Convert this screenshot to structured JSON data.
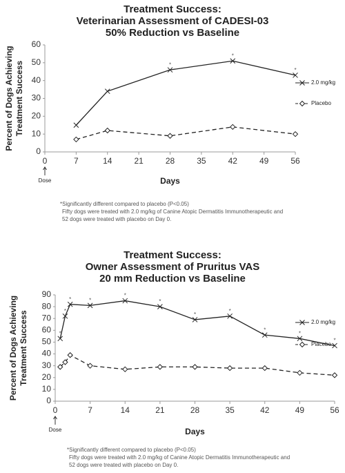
{
  "chart_data": [
    {
      "type": "line",
      "title": [
        "Treatment Success:",
        "Veterinarian Assessment of CADESI-03",
        "50% Reduction vs Baseline"
      ],
      "ylabel": [
        "Percent of Dogs Achieving",
        "Treatment Success"
      ],
      "xlabel": "Days",
      "xlim": [
        0,
        56
      ],
      "xticks": [
        0,
        7,
        14,
        21,
        28,
        35,
        42,
        49,
        56
      ],
      "ylim": [
        0,
        60
      ],
      "yticks": [
        0,
        10,
        20,
        30,
        40,
        50,
        60
      ],
      "significance_marker": "*",
      "series": [
        {
          "name": "2.0 mg/kg",
          "color": "#222222",
          "line_style": "solid",
          "marker": "x",
          "x": [
            7,
            14,
            28,
            42,
            56
          ],
          "values": [
            15,
            34,
            46,
            51,
            43
          ],
          "significant": [
            false,
            false,
            true,
            true,
            true
          ]
        },
        {
          "name": "Placebo",
          "color": "#222222",
          "line_style": "dashed",
          "marker": "diamond",
          "x": [
            7,
            14,
            28,
            42,
            56
          ],
          "values": [
            7,
            12,
            9,
            14,
            10
          ]
        }
      ],
      "annotations": [
        {
          "x": 0,
          "text": "Dose"
        }
      ],
      "footnotes": [
        "*Significantly different compared to placebo (P<0.05)",
        "Fifty dogs were treated with 2.0 mg/kg of Canine Atopic Dermatitis Immunotherapeutic and",
        "52 dogs were treated with placebo on Day 0."
      ]
    },
    {
      "type": "line",
      "title": [
        "Treatment Success:",
        "Owner Assessment of Pruritus VAS",
        "20 mm Reduction vs Baseline"
      ],
      "ylabel": [
        "Percent  of Dogs Achieving",
        "Treatment Success"
      ],
      "xlabel": "Days",
      "xlim": [
        0,
        56
      ],
      "xticks": [
        0,
        7,
        14,
        21,
        28,
        35,
        42,
        49,
        56
      ],
      "ylim": [
        0,
        90
      ],
      "yticks": [
        0,
        10,
        20,
        30,
        40,
        50,
        60,
        70,
        80,
        90
      ],
      "significance_marker": "*",
      "series": [
        {
          "name": "2.0 mg/kg",
          "color": "#222222",
          "line_style": "solid",
          "marker": "x",
          "x": [
            1,
            2,
            3,
            7,
            14,
            21,
            28,
            35,
            42,
            49,
            56
          ],
          "values": [
            53,
            72,
            82,
            81,
            85,
            80,
            69,
            72,
            56,
            53,
            47
          ],
          "significant": [
            true,
            true,
            true,
            true,
            true,
            true,
            true,
            true,
            true,
            true,
            true
          ]
        },
        {
          "name": "Placebo",
          "color": "#222222",
          "line_style": "dashed",
          "marker": "diamond",
          "x": [
            1,
            2,
            3,
            7,
            14,
            21,
            28,
            35,
            42,
            49,
            56
          ],
          "values": [
            29,
            33,
            39,
            30,
            27,
            29,
            29,
            28,
            28,
            24,
            22
          ]
        }
      ],
      "annotations": [
        {
          "x": 0,
          "text": "Dose"
        }
      ],
      "footnotes": [
        "*Significantly different compared to placebo (P<0.05)",
        "Fifty dogs were treated with 2.0 mg/kg of Canine Atopic Dermatitis Immunotherapeutic and",
        "52 dogs were treated with placebo on Day 0."
      ]
    }
  ]
}
